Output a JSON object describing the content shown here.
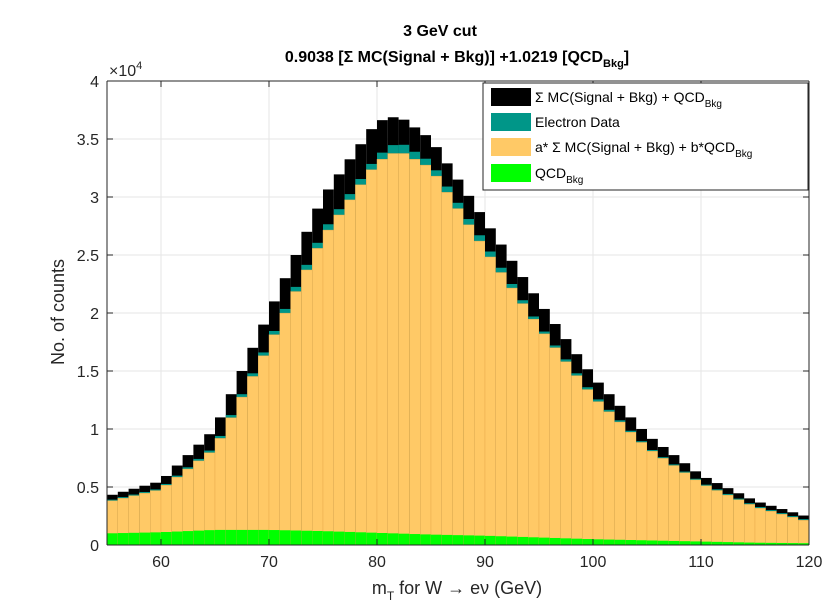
{
  "chart_data": {
    "type": "bar",
    "title_line1": "3 GeV cut",
    "title_line2": "0.9038 [Σ MC(Signal + Bkg)] +1.0219 [QCD",
    "title_line2_sub": "Bkg",
    "title_line2_end": "]",
    "xlabel_main": "m",
    "xlabel_sub": "T",
    "xlabel_rest": " for W → eν (GeV)",
    "ylabel": "No. of counts",
    "y_exponent_base": "×10",
    "y_exponent_power": "4",
    "xlim": [
      55,
      120
    ],
    "ylim": [
      0,
      40000
    ],
    "x_ticks": [
      "60",
      "70",
      "80",
      "90",
      "100",
      "110",
      "120"
    ],
    "y_ticks": [
      "0",
      "0.5",
      "1",
      "1.5",
      "2",
      "2.5",
      "3",
      "3.5",
      "4"
    ],
    "grid": true,
    "legend_position": "top-right",
    "legend": [
      {
        "text": "Σ MC(Signal + Bkg) + QCD",
        "sub": "Bkg",
        "color": "#000000"
      },
      {
        "text": "Electron Data",
        "sub": "",
        "color": "#009688"
      },
      {
        "text": "a* Σ MC(Signal + Bkg) + b*QCD",
        "sub": "Bkg",
        "color": "#FFC966"
      },
      {
        "text": "QCD",
        "sub": "Bkg",
        "color": "#00FF00"
      }
    ],
    "colors": {
      "mc_total": "#000000",
      "data": "#009688",
      "scaled": "#FFC966",
      "qcd": "#00FF00",
      "scaled_edge": "#E6A84A"
    },
    "series": [
      {
        "name": "Σ MC(Signal + Bkg) + QCDBkg",
        "points": [
          [
            55,
            4200
          ],
          [
            60,
            5500
          ],
          [
            65,
            10000
          ],
          [
            70,
            20000
          ],
          [
            75,
            30000
          ],
          [
            80,
            36500
          ],
          [
            82,
            37000
          ],
          [
            85,
            35000
          ],
          [
            90,
            28000
          ],
          [
            95,
            21000
          ],
          [
            100,
            14500
          ],
          [
            105,
            9500
          ],
          [
            110,
            6000
          ],
          [
            115,
            3800
          ],
          [
            120,
            2400
          ]
        ]
      },
      {
        "name": "Electron Data",
        "points": [
          [
            55,
            3800
          ],
          [
            60,
            4900
          ],
          [
            65,
            8500
          ],
          [
            70,
            17500
          ],
          [
            75,
            27000
          ],
          [
            80,
            33500
          ],
          [
            82,
            34800
          ],
          [
            85,
            33000
          ],
          [
            90,
            26000
          ],
          [
            95,
            19000
          ],
          [
            100,
            13000
          ],
          [
            105,
            8500
          ],
          [
            110,
            5400
          ],
          [
            115,
            3400
          ],
          [
            120,
            2100
          ]
        ]
      },
      {
        "name": "a* Σ MC(Signal + Bkg) + b*QCDBkg",
        "points": [
          [
            55,
            3700
          ],
          [
            60,
            4800
          ],
          [
            65,
            8300
          ],
          [
            70,
            17200
          ],
          [
            75,
            26500
          ],
          [
            80,
            33000
          ],
          [
            82,
            34000
          ],
          [
            85,
            32500
          ],
          [
            90,
            25500
          ],
          [
            95,
            18800
          ],
          [
            100,
            12800
          ],
          [
            105,
            8400
          ],
          [
            110,
            5300
          ],
          [
            115,
            3300
          ],
          [
            120,
            2000
          ]
        ]
      },
      {
        "name": "QCDBkg",
        "points": [
          [
            55,
            1000
          ],
          [
            60,
            1100
          ],
          [
            65,
            1300
          ],
          [
            70,
            1300
          ],
          [
            75,
            1200
          ],
          [
            80,
            1050
          ],
          [
            85,
            900
          ],
          [
            90,
            800
          ],
          [
            95,
            650
          ],
          [
            100,
            500
          ],
          [
            105,
            400
          ],
          [
            110,
            300
          ],
          [
            115,
            200
          ],
          [
            120,
            150
          ]
        ]
      }
    ]
  }
}
